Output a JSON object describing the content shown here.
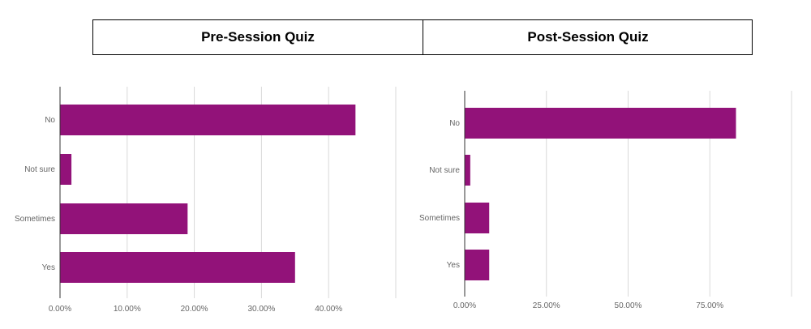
{
  "header": {
    "left_title": "Pre-Session Quiz",
    "right_title": "Post-Session Quiz"
  },
  "colors": {
    "bar": "#921279",
    "grid": "#d9d9d9",
    "axis": "#333333",
    "label": "#666666"
  },
  "chart_data": [
    {
      "type": "bar",
      "orientation": "horizontal",
      "title": "Pre-Session Quiz",
      "categories": [
        "No",
        "Not sure",
        "Sometimes",
        "Yes"
      ],
      "values": [
        0.44,
        0.017,
        0.19,
        0.35
      ],
      "xlim": [
        0,
        0.5
      ],
      "xticks": [
        0,
        0.1,
        0.2,
        0.3,
        0.4
      ],
      "xtick_labels": [
        "0.00%",
        "10.00%",
        "20.00%",
        "30.00%",
        "40.00%"
      ],
      "grid": true
    },
    {
      "type": "bar",
      "orientation": "horizontal",
      "title": "Post-Session Quiz",
      "categories": [
        "No",
        "Not sure",
        "Sometimes",
        "Yes"
      ],
      "values": [
        0.83,
        0.017,
        0.075,
        0.075
      ],
      "xlim": [
        0,
        1.0
      ],
      "xticks": [
        0,
        0.25,
        0.5,
        0.75
      ],
      "xtick_labels": [
        "0.00%",
        "25.00%",
        "50.00%",
        "75.00%"
      ],
      "grid": true
    }
  ]
}
